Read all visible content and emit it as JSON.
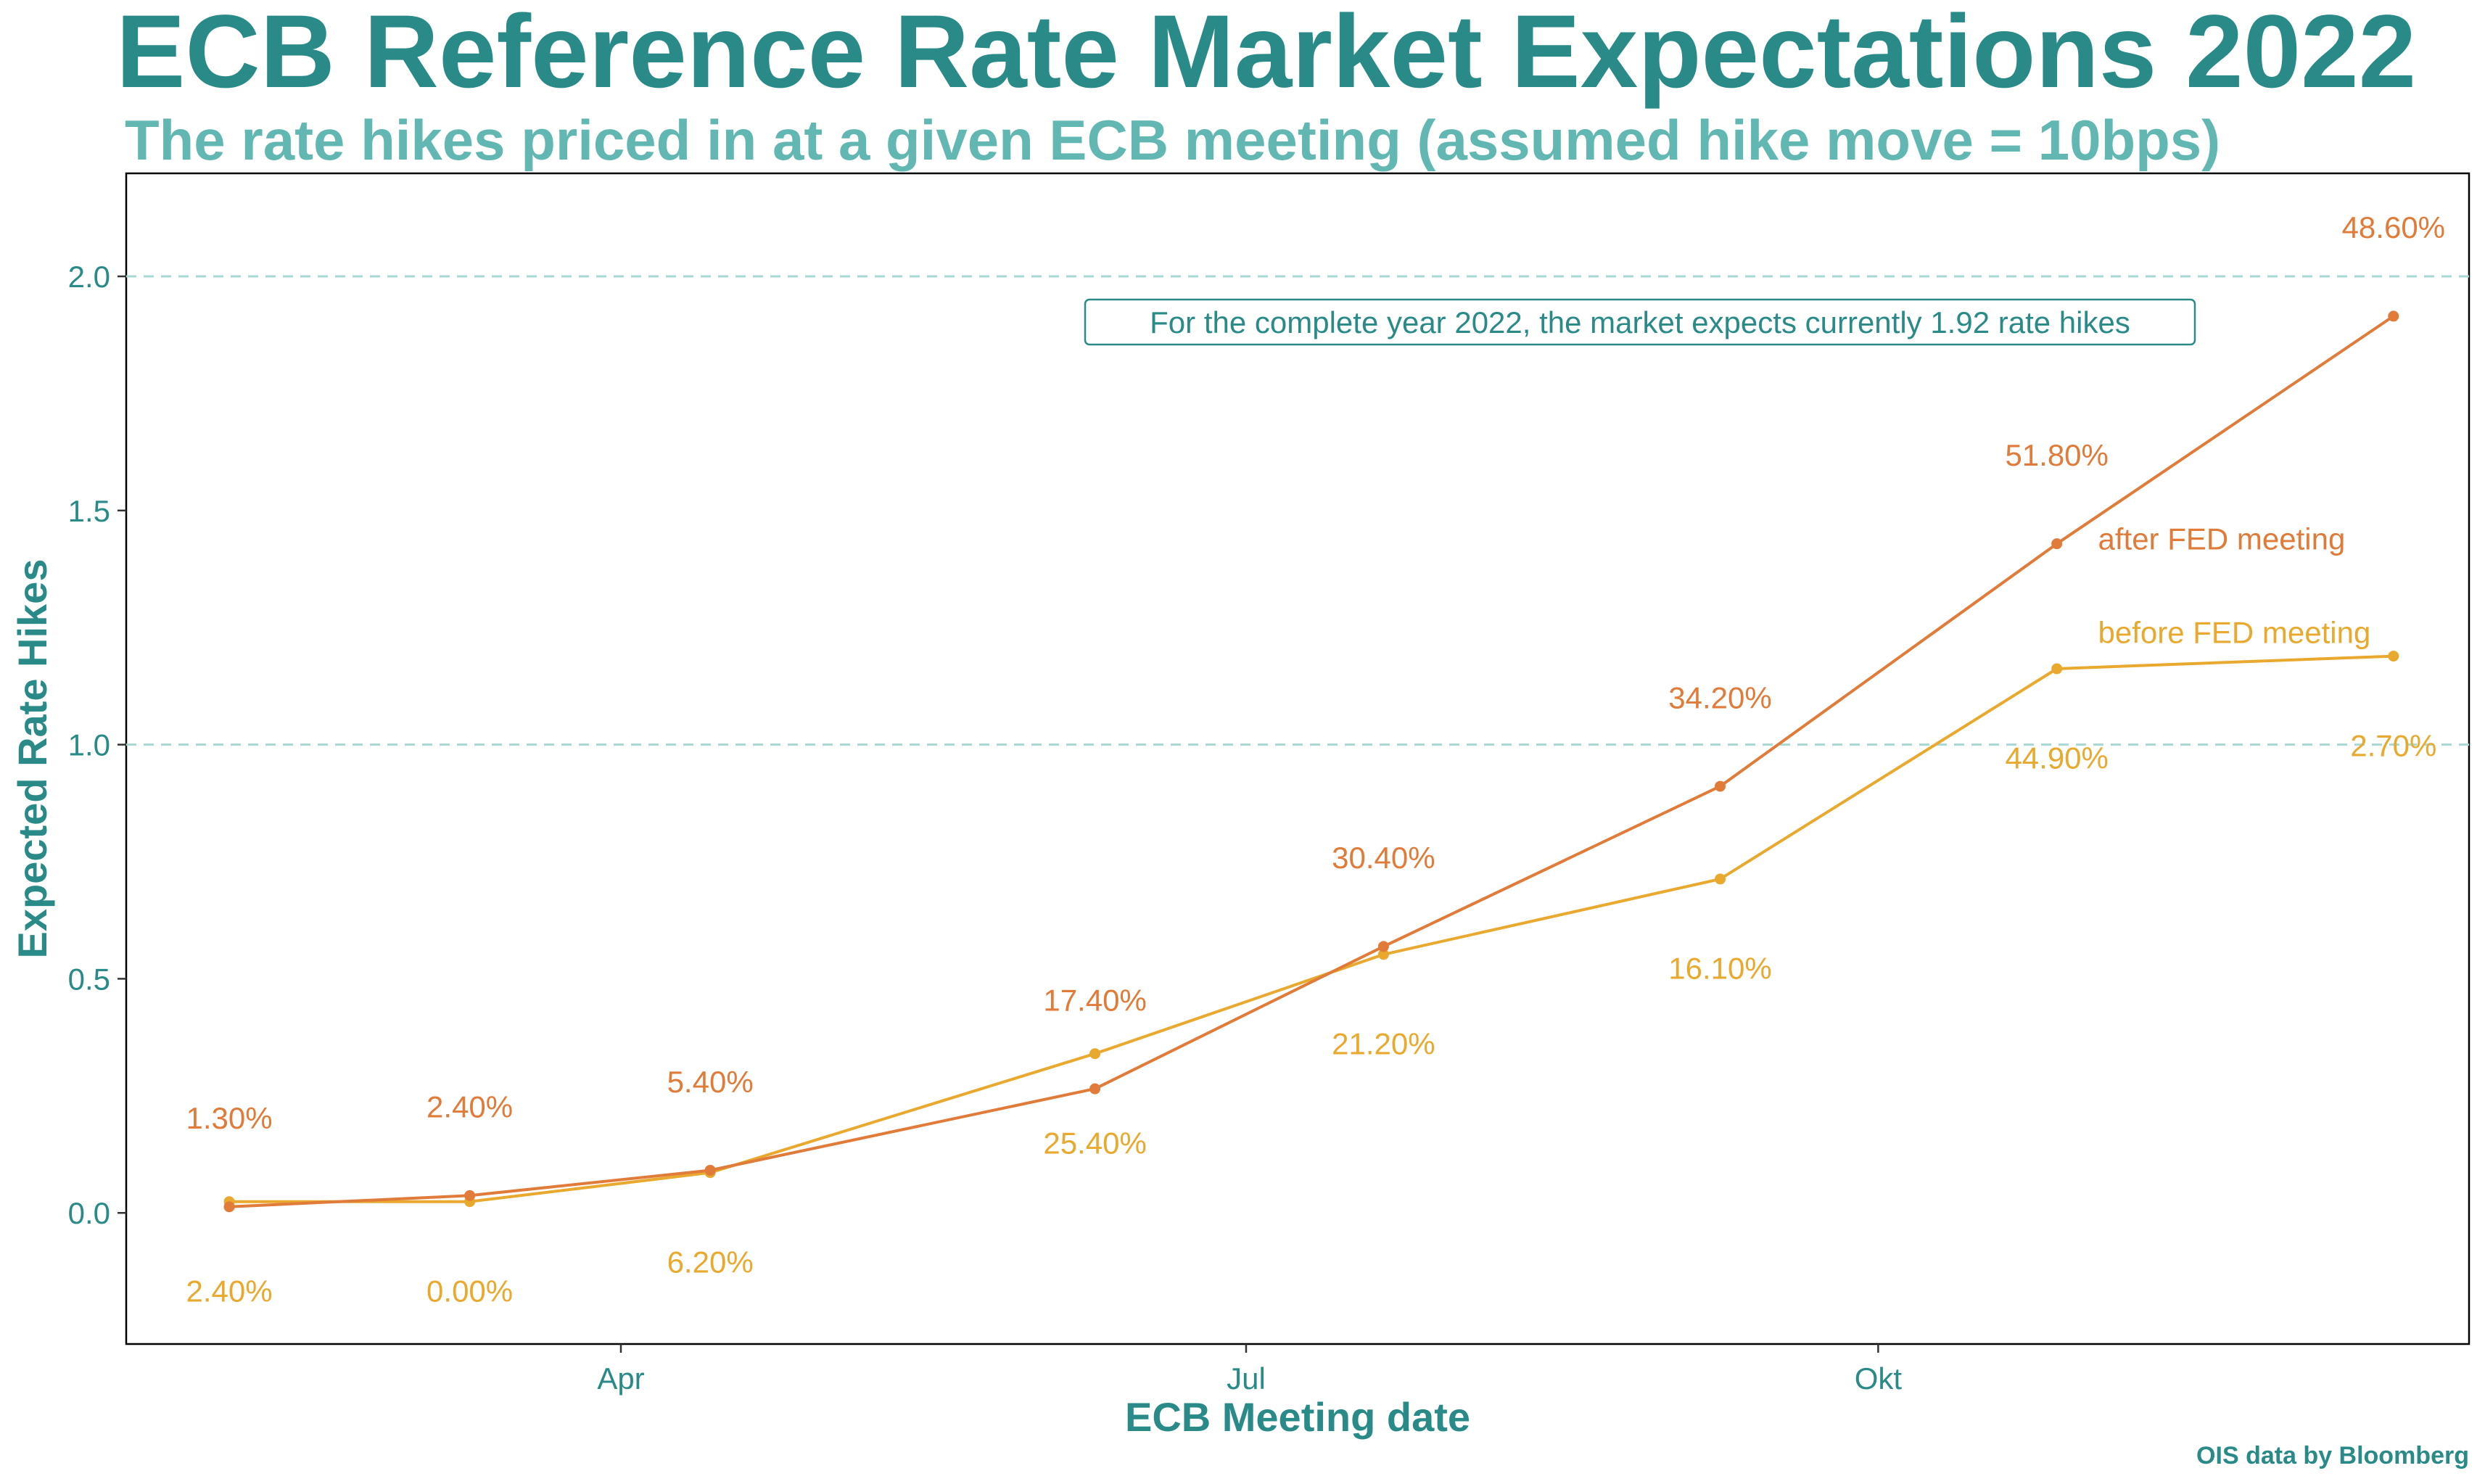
{
  "chart_data": {
    "type": "line",
    "title": "ECB Reference Rate Market Expectations 2022",
    "subtitle": "The rate hikes priced in at a given ECB meeting (assumed hike move = 10bps)",
    "xlabel": "ECB Meeting date",
    "ylabel": "Expected Rate Hikes",
    "caption": "OIS data by Bloomberg",
    "annotation": "For the complete year 2022, the market expects currently 1.92 rate hikes",
    "ylim": [
      -0.28,
      2.22
    ],
    "xlim": [
      "2022-01-19",
      "2022-12-26"
    ],
    "y_ticks": [
      0.0,
      0.5,
      1.0,
      1.5,
      2.0
    ],
    "y_tick_labels": [
      "0.0",
      "0.5",
      "1.0",
      "1.5",
      "2.0"
    ],
    "x_ticks": [
      "2022-04-01",
      "2022-07-01",
      "2022-10-01"
    ],
    "x_tick_labels": [
      "Apr",
      "Jul",
      "Okt"
    ],
    "reference_lines": [
      1.0,
      2.0
    ],
    "grid": false,
    "x": [
      "2022-02-03",
      "2022-03-10",
      "2022-04-14",
      "2022-06-09",
      "2022-07-21",
      "2022-09-08",
      "2022-10-27",
      "2022-12-15"
    ],
    "series": [
      {
        "name": "after FED meeting",
        "color": "#e07b39",
        "values": [
          0.013,
          0.037,
          0.091,
          0.265,
          0.569,
          0.911,
          1.429,
          1.915
        ],
        "labels": [
          "1.30%",
          "2.40%",
          "5.40%",
          "17.40%",
          "30.40%",
          "34.20%",
          "51.80%",
          "48.60%"
        ],
        "label_offsets": [
          0.19,
          0.19,
          0.19,
          0.19,
          0.19,
          0.19,
          0.19,
          0.19
        ]
      },
      {
        "name": "before FED meeting",
        "color": "#e8a92e",
        "values": [
          0.024,
          0.024,
          0.086,
          0.34,
          0.552,
          0.713,
          1.162,
          1.189
        ],
        "labels": [
          "2.40%",
          "0.00%",
          "6.20%",
          "25.40%",
          "21.20%",
          "16.10%",
          "44.90%",
          "2.70%"
        ],
        "label_offsets": [
          -0.19,
          -0.19,
          -0.19,
          -0.19,
          -0.19,
          -0.19,
          -0.19,
          -0.19
        ]
      }
    ],
    "series_label_points": [
      {
        "series": 0,
        "x": "2022-11-02",
        "y": 1.44
      },
      {
        "series": 1,
        "x": "2022-11-02",
        "y": 1.24
      }
    ],
    "colors": {
      "title": "#2a8a88",
      "subtitle": "#63b7b3",
      "axis_text": "#2a8a88",
      "reference_line": "#a8d8d4"
    }
  }
}
